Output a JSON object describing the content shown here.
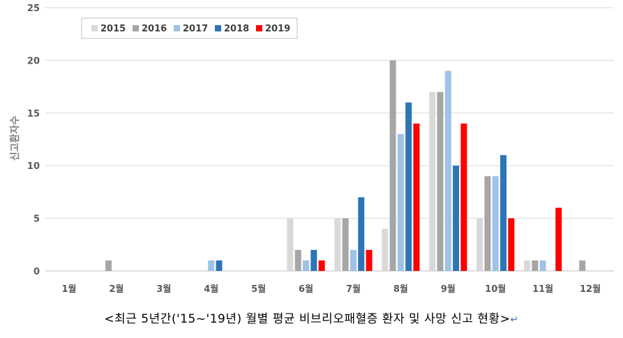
{
  "chart_data": {
    "type": "bar",
    "ylabel": "신고환자수",
    "ylim": [
      0,
      25
    ],
    "yticks": [
      0,
      5,
      10,
      15,
      20,
      25
    ],
    "grid": true,
    "legend_position": "top-left",
    "categories": [
      "1월",
      "2월",
      "3월",
      "4월",
      "5월",
      "6월",
      "7월",
      "8월",
      "9월",
      "10월",
      "11월",
      "12월"
    ],
    "series": [
      {
        "name": "2015",
        "color": "#d9d9d9",
        "values": [
          0,
          0,
          0,
          0,
          0,
          5,
          5,
          4,
          17,
          5,
          1,
          0
        ]
      },
      {
        "name": "2016",
        "color": "#a6a6a6",
        "values": [
          0,
          1,
          0,
          0,
          0,
          2,
          5,
          20,
          17,
          9,
          1,
          1
        ]
      },
      {
        "name": "2017",
        "color": "#9dc3e6",
        "values": [
          0,
          0,
          0,
          1,
          0,
          1,
          2,
          13,
          19,
          9,
          1,
          0
        ]
      },
      {
        "name": "2018",
        "color": "#2e75b6",
        "values": [
          0,
          0,
          0,
          1,
          0,
          2,
          7,
          16,
          10,
          11,
          0,
          0
        ]
      },
      {
        "name": "2019",
        "color": "#ff0000",
        "values": [
          0,
          0,
          0,
          0,
          0,
          1,
          2,
          14,
          14,
          5,
          6,
          0
        ]
      }
    ]
  },
  "caption": {
    "text": "<최근 5년간('15~'19년) 월별 평균 비브리오패혈증 환자 및 사망 신고 현황>",
    "mark": "↵"
  }
}
